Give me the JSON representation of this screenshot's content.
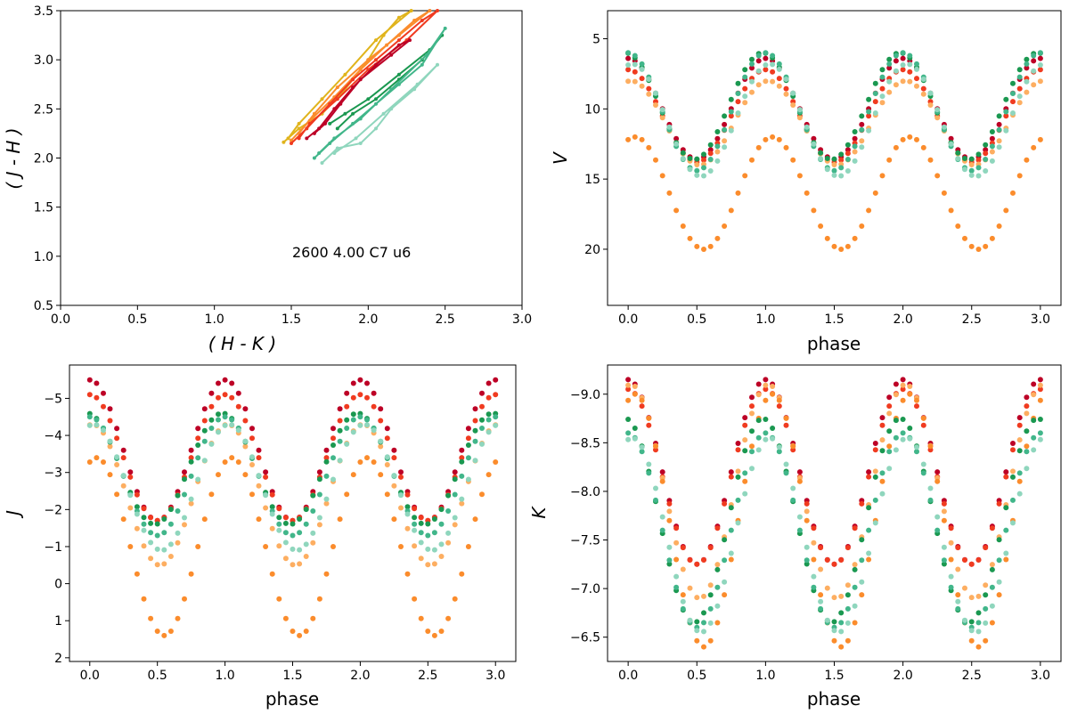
{
  "colors": {
    "gold": "#e0b41c",
    "orange": "#fb8c2c",
    "lightorange": "#fdae61",
    "red": "#f03b20",
    "darkred": "#bd0026",
    "green": "#1a9850",
    "midgreen": "#41b68a",
    "lightgreen": "#8fd6bd"
  },
  "chart_data": [
    {
      "type": "line",
      "id": "color-color",
      "title": "",
      "xlabel": "( H - K )",
      "ylabel": "( J - H )",
      "xlim": [
        0.0,
        3.0
      ],
      "ylim": [
        0.5,
        3.5
      ],
      "y_inverted": false,
      "xticks": [
        "0.0",
        "0.5",
        "1.0",
        "1.5",
        "2.0",
        "2.5",
        "3.0"
      ],
      "yticks": [
        "0.5",
        "1.0",
        "1.5",
        "2.0",
        "2.5",
        "3.0",
        "3.5"
      ],
      "annotation": "2600   4.00   C7   u6",
      "series": [
        {
          "name": "gold",
          "color": "gold",
          "points": [
            [
              1.45,
              2.16
            ],
            [
              1.55,
              2.3
            ],
            [
              1.7,
              2.45
            ],
            [
              1.85,
              2.7
            ],
            [
              2.0,
              3.0
            ],
            [
              2.1,
              3.25
            ],
            [
              2.2,
              3.43
            ],
            [
              2.28,
              3.5
            ],
            [
              2.05,
              3.2
            ],
            [
              1.85,
              2.85
            ],
            [
              1.7,
              2.6
            ],
            [
              1.55,
              2.35
            ],
            [
              1.48,
              2.2
            ]
          ]
        },
        {
          "name": "orange",
          "color": "orange",
          "points": [
            [
              1.5,
              2.18
            ],
            [
              1.62,
              2.38
            ],
            [
              1.78,
              2.62
            ],
            [
              1.95,
              2.9
            ],
            [
              2.12,
              3.15
            ],
            [
              2.3,
              3.4
            ],
            [
              2.4,
              3.5
            ],
            [
              2.2,
              3.25
            ],
            [
              2.0,
              3.0
            ],
            [
              1.8,
              2.72
            ],
            [
              1.65,
              2.45
            ],
            [
              1.55,
              2.25
            ]
          ]
        },
        {
          "name": "red",
          "color": "red",
          "points": [
            [
              1.5,
              2.15
            ],
            [
              1.6,
              2.3
            ],
            [
              1.75,
              2.55
            ],
            [
              1.9,
              2.8
            ],
            [
              2.05,
              3.0
            ],
            [
              2.2,
              3.2
            ],
            [
              2.35,
              3.4
            ],
            [
              2.45,
              3.5
            ],
            [
              2.25,
              3.2
            ],
            [
              2.0,
              2.9
            ],
            [
              1.8,
              2.6
            ],
            [
              1.62,
              2.35
            ],
            [
              1.55,
              2.2
            ]
          ]
        },
        {
          "name": "darkred",
          "color": "darkred",
          "points": [
            [
              1.6,
              2.2
            ],
            [
              1.68,
              2.3
            ],
            [
              1.78,
              2.5
            ],
            [
              1.9,
              2.72
            ],
            [
              2.05,
              2.95
            ],
            [
              2.2,
              3.15
            ],
            [
              2.27,
              3.2
            ],
            [
              2.15,
              3.05
            ],
            [
              1.95,
              2.8
            ],
            [
              1.82,
              2.55
            ],
            [
              1.72,
              2.35
            ],
            [
              1.65,
              2.25
            ]
          ]
        },
        {
          "name": "green",
          "color": "green",
          "points": [
            [
              1.8,
              2.3
            ],
            [
              1.9,
              2.45
            ],
            [
              2.05,
              2.6
            ],
            [
              2.2,
              2.8
            ],
            [
              2.35,
              3.0
            ],
            [
              2.48,
              3.25
            ],
            [
              2.4,
              3.1
            ],
            [
              2.2,
              2.85
            ],
            [
              2.0,
              2.6
            ],
            [
              1.85,
              2.45
            ],
            [
              1.75,
              2.35
            ]
          ]
        },
        {
          "name": "midgreen",
          "color": "midgreen",
          "points": [
            [
              1.65,
              2.0
            ],
            [
              1.75,
              2.15
            ],
            [
              1.9,
              2.35
            ],
            [
              2.05,
              2.55
            ],
            [
              2.2,
              2.75
            ],
            [
              2.35,
              2.95
            ],
            [
              2.5,
              3.32
            ],
            [
              2.38,
              3.05
            ],
            [
              2.15,
              2.7
            ],
            [
              1.95,
              2.4
            ],
            [
              1.78,
              2.2
            ],
            [
              1.68,
              2.05
            ]
          ]
        },
        {
          "name": "lightgreen",
          "color": "lightgreen",
          "points": [
            [
              1.7,
              1.95
            ],
            [
              1.8,
              2.1
            ],
            [
              1.95,
              2.15
            ],
            [
              2.05,
              2.3
            ],
            [
              2.15,
              2.5
            ],
            [
              2.3,
              2.7
            ],
            [
              2.45,
              2.95
            ],
            [
              2.32,
              2.75
            ],
            [
              2.1,
              2.45
            ],
            [
              1.92,
              2.2
            ],
            [
              1.78,
              2.05
            ]
          ]
        }
      ]
    },
    {
      "type": "scatter",
      "id": "V-phase",
      "title": "",
      "xlabel": "phase",
      "ylabel": "V",
      "xlim": [
        -0.15,
        3.15
      ],
      "ylim": [
        3,
        24
      ],
      "y_inverted": true,
      "xticks": [
        "0.0",
        "0.5",
        "1.0",
        "1.5",
        "2.0",
        "2.5",
        "3.0"
      ],
      "yticks": [
        "5",
        "10",
        "15",
        "20"
      ],
      "series": [
        {
          "name": "darkred",
          "color": "darkred",
          "mean": 10.0,
          "amp": 3.6,
          "shift": 0.0
        },
        {
          "name": "red",
          "color": "red",
          "mean": 10.5,
          "amp": 3.3,
          "shift": 0.0
        },
        {
          "name": "lightorange",
          "color": "lightorange",
          "mean": 11.0,
          "amp": 3.0,
          "shift": 0.02
        },
        {
          "name": "orange",
          "color": "orange",
          "mean": 16.0,
          "amp": 4.0,
          "shift": 0.05
        },
        {
          "name": "green",
          "color": "green",
          "mean": 9.8,
          "amp": 3.8,
          "shift": -0.02
        },
        {
          "name": "midgreen",
          "color": "midgreen",
          "mean": 10.2,
          "amp": 4.2,
          "shift": 0.0
        },
        {
          "name": "lightgreen",
          "color": "lightgreen",
          "mean": 10.8,
          "amp": 4.0,
          "shift": 0.03
        }
      ]
    },
    {
      "type": "scatter",
      "id": "J-phase",
      "title": "",
      "xlabel": "phase",
      "ylabel": "J",
      "xlim": [
        -0.15,
        3.15
      ],
      "ylim": [
        -5.9,
        2.1
      ],
      "y_inverted": true,
      "xticks": [
        "0.0",
        "0.5",
        "1.0",
        "1.5",
        "2.0",
        "2.5",
        "3.0"
      ],
      "yticks": [
        "-5",
        "-4",
        "-3",
        "-2",
        "-1",
        "0",
        "1",
        "2"
      ],
      "series": [
        {
          "name": "darkred",
          "color": "darkred",
          "mean": -3.6,
          "amp": 1.9,
          "shift": 0.0
        },
        {
          "name": "red",
          "color": "red",
          "mean": -3.4,
          "amp": 1.7,
          "shift": 0.0
        },
        {
          "name": "lightorange",
          "color": "lightorange",
          "mean": -2.4,
          "amp": 1.9,
          "shift": 0.02
        },
        {
          "name": "orange",
          "color": "orange",
          "mean": -1.0,
          "amp": 2.4,
          "shift": 0.05
        },
        {
          "name": "green",
          "color": "green",
          "mean": -3.1,
          "amp": 1.5,
          "shift": -0.02
        },
        {
          "name": "midgreen",
          "color": "midgreen",
          "mean": -2.9,
          "amp": 1.6,
          "shift": 0.0
        },
        {
          "name": "lightgreen",
          "color": "lightgreen",
          "mean": -2.6,
          "amp": 1.7,
          "shift": 0.03
        }
      ]
    },
    {
      "type": "scatter",
      "id": "K-phase",
      "title": "",
      "xlabel": "phase",
      "ylabel": "K",
      "xlim": [
        -0.15,
        3.15
      ],
      "ylim": [
        -9.3,
        -6.25
      ],
      "y_inverted": true,
      "xticks": [
        "0.0",
        "0.5",
        "1.0",
        "1.5",
        "2.0",
        "2.5",
        "3.0"
      ],
      "yticks": [
        "-9.0",
        "-8.5",
        "-8.0",
        "-7.5",
        "-7.0",
        "-6.5"
      ],
      "series": [
        {
          "name": "darkred",
          "color": "darkred",
          "mean": -8.2,
          "amp": 0.95,
          "shift": 0.0
        },
        {
          "name": "red",
          "color": "red",
          "mean": -8.15,
          "amp": 0.9,
          "shift": 0.0
        },
        {
          "name": "lightorange",
          "color": "lightorange",
          "mean": -8.0,
          "amp": 1.1,
          "shift": 0.02
        },
        {
          "name": "orange",
          "color": "orange",
          "mean": -7.7,
          "amp": 1.3,
          "shift": 0.05
        },
        {
          "name": "green",
          "color": "green",
          "mean": -7.7,
          "amp": 1.05,
          "shift": -0.02
        },
        {
          "name": "midgreen",
          "color": "midgreen",
          "mean": -7.6,
          "amp": 1.0,
          "shift": 0.0
        },
        {
          "name": "lightgreen",
          "color": "lightgreen",
          "mean": -7.55,
          "amp": 1.0,
          "shift": 0.03
        }
      ]
    }
  ]
}
